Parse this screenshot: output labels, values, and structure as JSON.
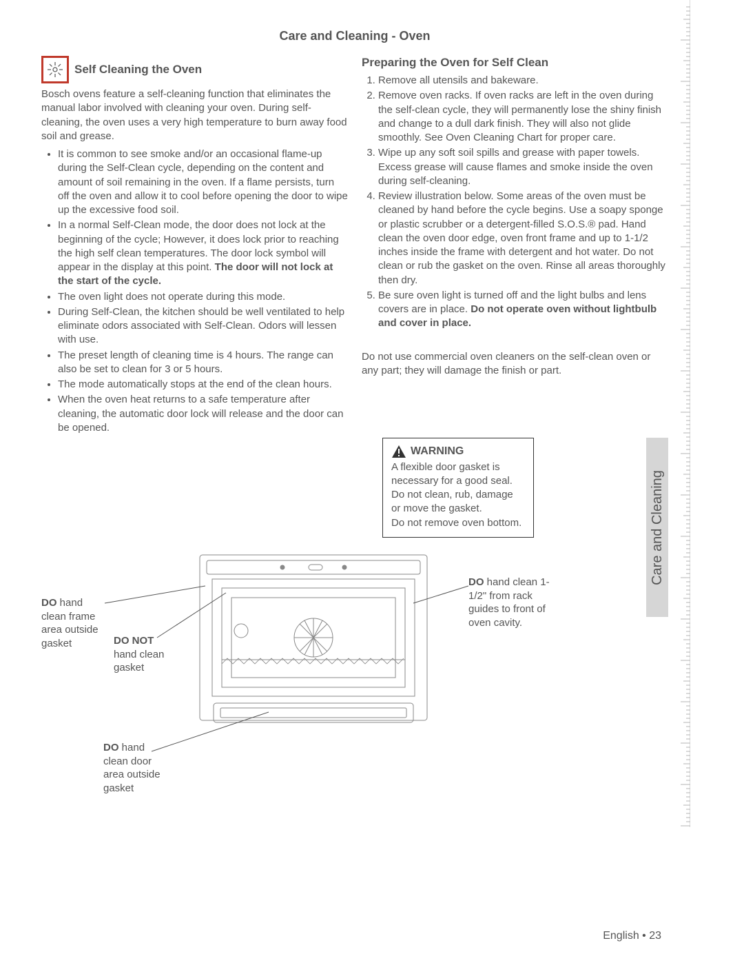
{
  "main_title": "Care and Cleaning - Oven",
  "left": {
    "section_title": "Self Cleaning the Oven",
    "intro": "Bosch ovens feature a self-cleaning function that eliminates the manual labor involved with cleaning your oven. During self-cleaning, the oven uses a very high temperature to burn away food soil and grease.",
    "bullets": [
      "It is common to see smoke and/or an occasional flame-up during the Self-Clean cycle, depending on the content and amount of soil remaining in the oven. If a flame persists, turn off the oven and allow it to cool before opening the door to wipe up the excessive food soil.",
      "In a normal Self-Clean mode, the door does not lock at the beginning of the cycle; However, it does lock prior to reaching the high self clean temperatures. The door lock symbol will appear in the display at this point. The door will not lock at the start of the cycle.",
      "The oven light does not operate during this mode.",
      "During Self-Clean, the kitchen should be well ventilated to help eliminate odors associated with Self-Clean. Odors will lessen with use.",
      "The preset length of cleaning time is 4 hours. The range can also be set to clean for 3 or 5 hours.",
      "The mode automatically stops at the end of the clean hours.",
      "When the oven heat returns to a safe temperature after cleaning, the automatic door lock will release and the door can be opened."
    ],
    "bullet_bold_phrase": "The door will not lock at the start of the cycle."
  },
  "right": {
    "section_title": "Preparing the Oven for Self Clean",
    "items": [
      "Remove all utensils and bakeware.",
      "Remove oven racks. If oven racks are left in the oven during the self-clean cycle, they will permanently lose the shiny finish and change to a dull dark finish. They will also not glide smoothly. See Oven Cleaning Chart for proper care.",
      "Wipe up any soft soil spills and grease with paper towels. Excess grease will cause flames and smoke inside the oven during self-cleaning.",
      "Review illustration below. Some areas of the oven must be cleaned by hand before the cycle begins. Use a soapy sponge or plastic scrubber or a detergent-filled S.O.S.® pad. Hand clean the oven door edge, oven front frame and up to 1-1/2 inches inside the frame with detergent and hot water. Do not clean or rub the gasket on the oven. Rinse all areas thoroughly then dry.",
      "Be sure oven light is turned off and the light bulbs and lens covers are in place. Do not operate oven without lightbulb and cover in place."
    ],
    "item5_bold": "Do not operate oven without lightbulb and cover in place.",
    "after": "Do not use commercial oven cleaners on the self-clean oven or any part; they will damage the finish or part."
  },
  "warning": {
    "title": "WARNING",
    "line1": "A flexible door gasket is necessary for a good seal. Do not clean, rub, damage or move the gasket.",
    "line2": "Do not remove oven bottom."
  },
  "callouts": {
    "c1_bold": "DO",
    "c1_text": " hand clean frame area outside gasket",
    "c2_bold": "DO NOT",
    "c2_text": "hand clean gasket",
    "c3_bold": "DO",
    "c3_text": " hand clean door area outside gasket",
    "c4_bold": "DO",
    "c4_text": " hand clean 1-1/2\" from rack guides to front of oven cavity."
  },
  "side_tab": "Care and Cleaning",
  "footer": "English • 23",
  "colors": {
    "text": "#555555",
    "icon_border": "#c0392b",
    "ruler": "#b5b5b5",
    "tab_bg": "#d6d6d6"
  }
}
